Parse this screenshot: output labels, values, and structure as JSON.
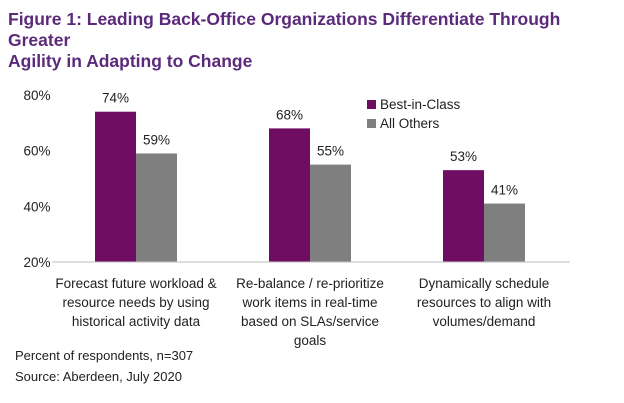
{
  "figure": {
    "title_line1": "Figure 1: Leading Back-Office Organizations Differentiate Through Greater",
    "title_line2": "Agility in Adapting to Change",
    "footnote": "Percent of respondents, n=307",
    "source": "Source: Aberdeen, July 2020"
  },
  "chart_data": {
    "type": "bar",
    "title": "Figure 1: Leading Back-Office Organizations Differentiate Through Greater Agility in Adapting to Change",
    "xlabel": "",
    "ylabel": "",
    "ylim": [
      20,
      80
    ],
    "yticks": [
      80,
      60,
      40,
      20
    ],
    "ytick_labels": [
      "80%",
      "60%",
      "40%",
      "20%"
    ],
    "grid": false,
    "legend_position": "top-right",
    "categories": [
      [
        "Forecast future workload &",
        "resource needs by using",
        "historical activity data"
      ],
      [
        "Re-balance / re-prioritize",
        "work items in real-time",
        "based on SLAs/service",
        "goals"
      ],
      [
        "Dynamically schedule",
        "resources to align with",
        "volumes/demand"
      ]
    ],
    "series": [
      {
        "name": "Best-in-Class",
        "color": "#6f0d63",
        "values": [
          74,
          68,
          53
        ],
        "labels": [
          "74%",
          "68%",
          "53%"
        ]
      },
      {
        "name": "All Others",
        "color": "#7f7f7f",
        "values": [
          59,
          55,
          41
        ],
        "labels": [
          "59%",
          "55%",
          "41%"
        ]
      }
    ]
  }
}
